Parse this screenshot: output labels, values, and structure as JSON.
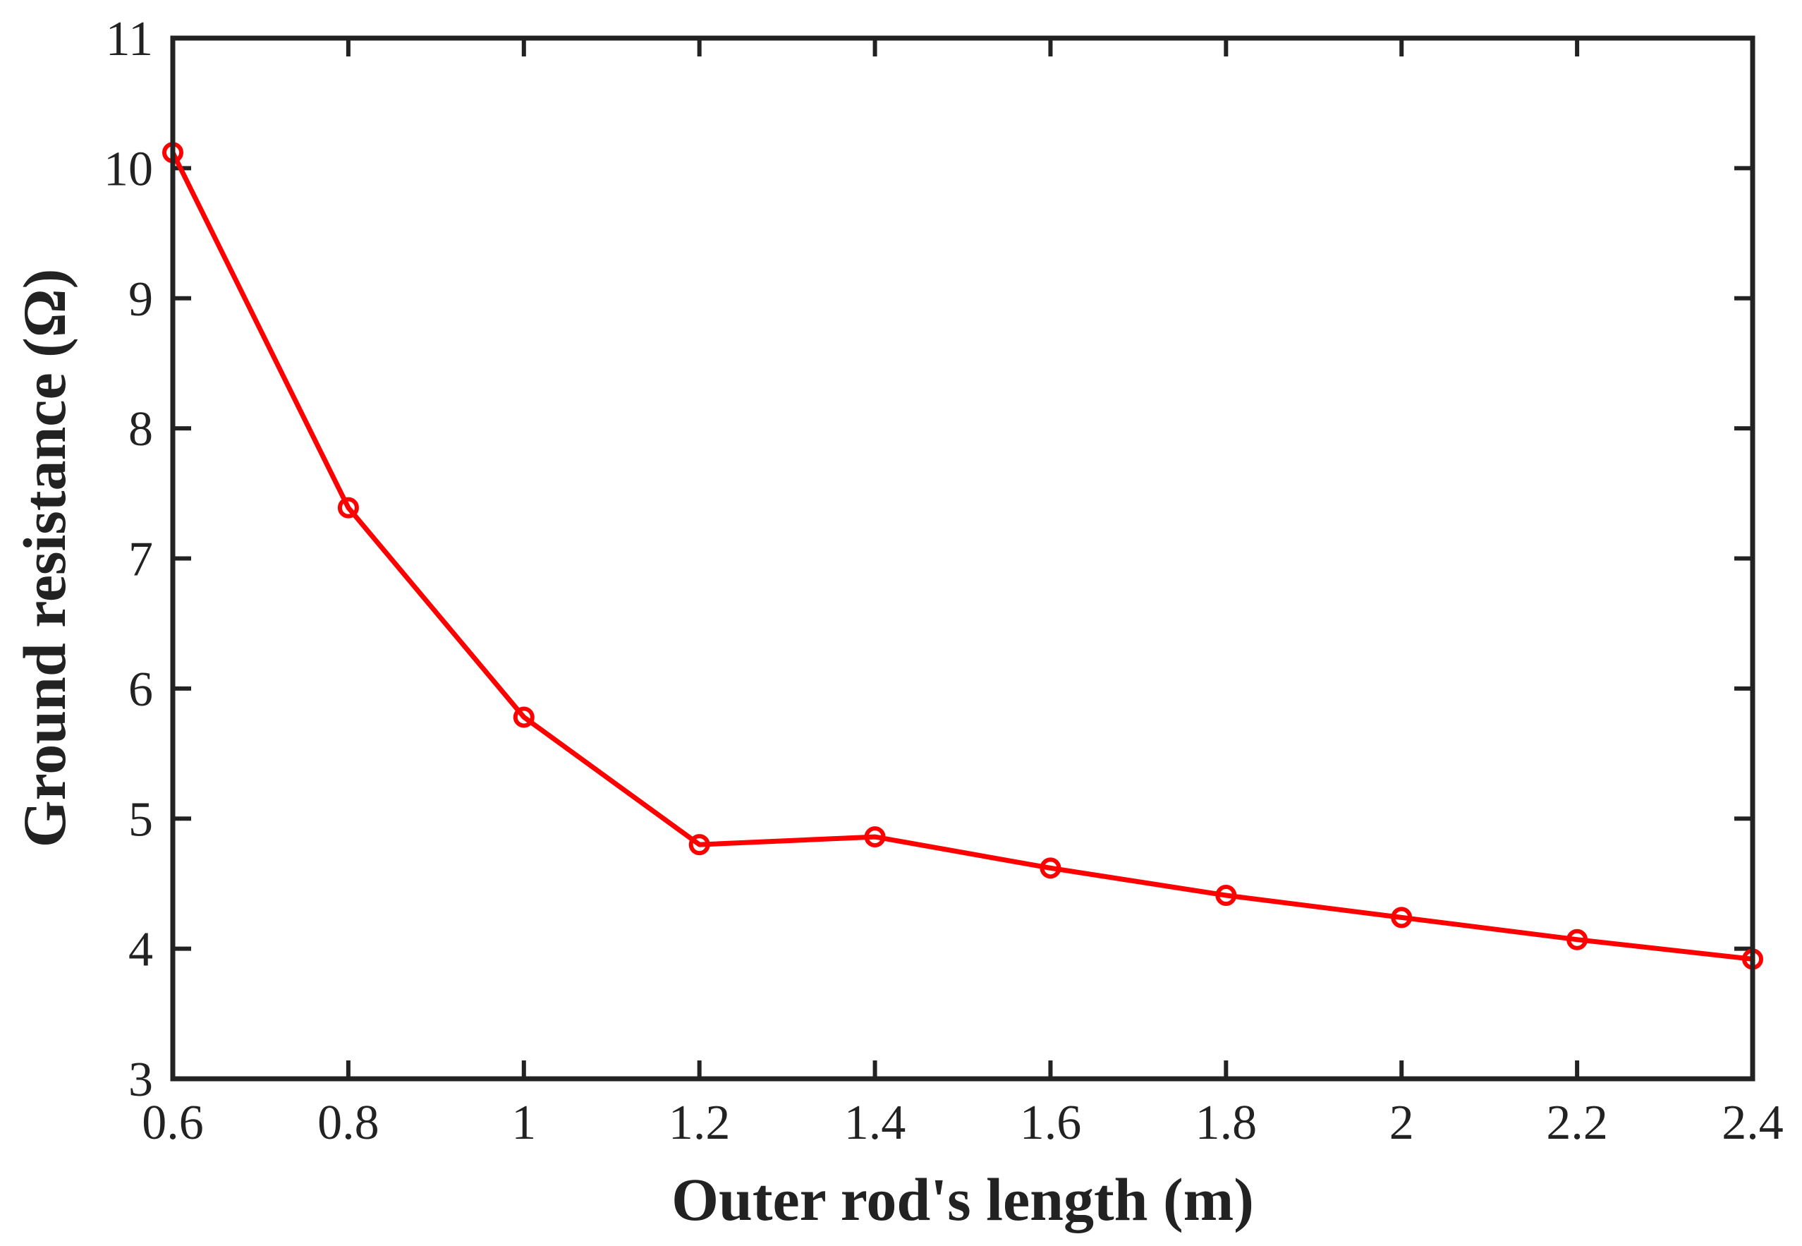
{
  "chart_data": {
    "type": "line",
    "title": "",
    "xlabel": "Outer rod's length (m)",
    "ylabel": "Ground resistance (Ω)",
    "xlim": [
      0.6,
      2.4
    ],
    "ylim": [
      3,
      11
    ],
    "xticks": [
      0.6,
      0.8,
      1.0,
      1.2,
      1.4,
      1.6,
      1.8,
      2.0,
      2.2,
      2.4
    ],
    "xtick_labels": [
      "0.6",
      "0.8",
      "1",
      "1.2",
      "1.4",
      "1.6",
      "1.8",
      "2",
      "2.2",
      "2.4"
    ],
    "yticks": [
      3,
      4,
      5,
      6,
      7,
      8,
      9,
      10,
      11
    ],
    "ytick_labels": [
      "3",
      "4",
      "5",
      "6",
      "7",
      "8",
      "9",
      "10",
      "11"
    ],
    "grid": false,
    "series": [
      {
        "name": "Ground resistance",
        "color": "#ff0000",
        "marker": "circle",
        "x": [
          0.6,
          0.8,
          1.0,
          1.2,
          1.4,
          1.6,
          1.8,
          2.0,
          2.2,
          2.4
        ],
        "y": [
          10.12,
          7.39,
          5.78,
          4.8,
          4.86,
          4.62,
          4.41,
          4.24,
          4.07,
          3.92
        ]
      }
    ]
  },
  "colors": {
    "axis": "#222222",
    "background": "#ffffff"
  }
}
